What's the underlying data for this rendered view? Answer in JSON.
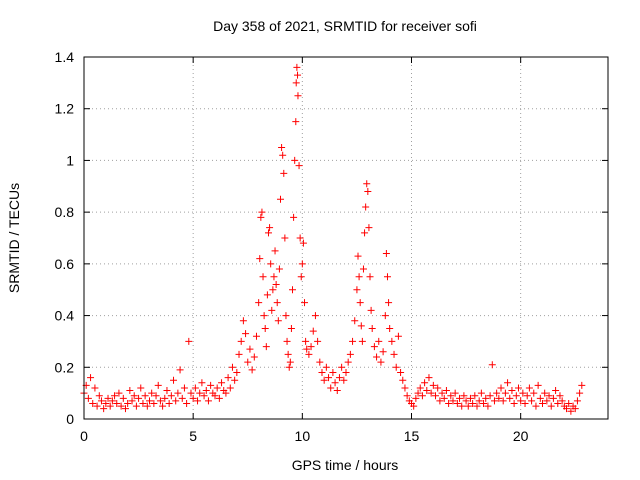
{
  "chart_data": {
    "type": "scatter",
    "title": "Day 358 of 2021, SRMTID for receiver sofi",
    "xlabel": "GPS time / hours",
    "ylabel": "SRMTID / TECUs",
    "xlim": [
      0,
      24
    ],
    "ylim": [
      0,
      1.4
    ],
    "x_ticks": [
      0,
      5,
      10,
      15,
      20
    ],
    "x_tick_labels": [
      "0",
      "5",
      "10",
      "15",
      "20"
    ],
    "y_ticks": [
      0,
      0.2,
      0.4,
      0.6,
      0.8,
      1.0,
      1.2,
      1.4
    ],
    "y_tick_labels": [
      "0",
      "0.2",
      "0.4",
      "0.6",
      "0.8",
      "1",
      "1.2",
      "1.4"
    ],
    "grid": true,
    "marker": "+",
    "color": "#ff0000",
    "series": [
      {
        "name": "SRMTID",
        "points": [
          [
            0.0,
            0.1
          ],
          [
            0.1,
            0.13
          ],
          [
            0.2,
            0.08
          ],
          [
            0.3,
            0.16
          ],
          [
            0.4,
            0.06
          ],
          [
            0.5,
            0.12
          ],
          [
            0.6,
            0.05
          ],
          [
            0.7,
            0.09
          ],
          [
            0.8,
            0.07
          ],
          [
            0.9,
            0.04
          ],
          [
            1.0,
            0.06
          ],
          [
            1.1,
            0.08
          ],
          [
            1.2,
            0.05
          ],
          [
            1.3,
            0.07
          ],
          [
            1.4,
            0.09
          ],
          [
            1.5,
            0.06
          ],
          [
            1.6,
            0.1
          ],
          [
            1.7,
            0.05
          ],
          [
            1.8,
            0.08
          ],
          [
            1.9,
            0.04
          ],
          [
            2.0,
            0.06
          ],
          [
            2.1,
            0.11
          ],
          [
            2.2,
            0.07
          ],
          [
            2.3,
            0.09
          ],
          [
            2.4,
            0.05
          ],
          [
            2.5,
            0.08
          ],
          [
            2.6,
            0.12
          ],
          [
            2.7,
            0.06
          ],
          [
            2.8,
            0.09
          ],
          [
            2.9,
            0.05
          ],
          [
            3.0,
            0.07
          ],
          [
            3.1,
            0.1
          ],
          [
            3.2,
            0.06
          ],
          [
            3.3,
            0.09
          ],
          [
            3.4,
            0.13
          ],
          [
            3.5,
            0.07
          ],
          [
            3.6,
            0.05
          ],
          [
            3.7,
            0.08
          ],
          [
            3.8,
            0.11
          ],
          [
            3.9,
            0.06
          ],
          [
            4.0,
            0.09
          ],
          [
            4.1,
            0.15
          ],
          [
            4.2,
            0.07
          ],
          [
            4.3,
            0.1
          ],
          [
            4.4,
            0.19
          ],
          [
            4.5,
            0.08
          ],
          [
            4.6,
            0.12
          ],
          [
            4.7,
            0.06
          ],
          [
            4.8,
            0.3
          ],
          [
            4.9,
            0.1
          ],
          [
            5.0,
            0.08
          ],
          [
            5.1,
            0.12
          ],
          [
            5.2,
            0.07
          ],
          [
            5.3,
            0.1
          ],
          [
            5.4,
            0.14
          ],
          [
            5.5,
            0.09
          ],
          [
            5.6,
            0.11
          ],
          [
            5.7,
            0.07
          ],
          [
            5.8,
            0.13
          ],
          [
            5.9,
            0.1
          ],
          [
            6.0,
            0.09
          ],
          [
            6.1,
            0.12
          ],
          [
            6.2,
            0.08
          ],
          [
            6.3,
            0.14
          ],
          [
            6.4,
            0.11
          ],
          [
            6.5,
            0.1
          ],
          [
            6.6,
            0.16
          ],
          [
            6.7,
            0.12
          ],
          [
            6.8,
            0.2
          ],
          [
            6.9,
            0.15
          ],
          [
            7.0,
            0.18
          ],
          [
            7.1,
            0.25
          ],
          [
            7.2,
            0.3
          ],
          [
            7.3,
            0.38
          ],
          [
            7.4,
            0.33
          ],
          [
            7.5,
            0.22
          ],
          [
            7.6,
            0.27
          ],
          [
            7.7,
            0.19
          ],
          [
            7.8,
            0.24
          ],
          [
            7.9,
            0.32
          ],
          [
            8.0,
            0.45
          ],
          [
            8.05,
            0.62
          ],
          [
            8.1,
            0.78
          ],
          [
            8.15,
            0.8
          ],
          [
            8.2,
            0.55
          ],
          [
            8.25,
            0.4
          ],
          [
            8.3,
            0.35
          ],
          [
            8.35,
            0.28
          ],
          [
            8.4,
            0.48
          ],
          [
            8.45,
            0.72
          ],
          [
            8.5,
            0.74
          ],
          [
            8.55,
            0.6
          ],
          [
            8.6,
            0.42
          ],
          [
            8.65,
            0.5
          ],
          [
            8.7,
            0.55
          ],
          [
            8.75,
            0.65
          ],
          [
            8.8,
            0.52
          ],
          [
            8.85,
            0.45
          ],
          [
            8.9,
            0.38
          ],
          [
            8.95,
            0.58
          ],
          [
            9.0,
            0.85
          ],
          [
            9.05,
            1.05
          ],
          [
            9.1,
            1.02
          ],
          [
            9.15,
            0.95
          ],
          [
            9.2,
            0.7
          ],
          [
            9.25,
            0.4
          ],
          [
            9.3,
            0.3
          ],
          [
            9.35,
            0.25
          ],
          [
            9.4,
            0.2
          ],
          [
            9.45,
            0.22
          ],
          [
            9.5,
            0.35
          ],
          [
            9.55,
            0.5
          ],
          [
            9.6,
            0.78
          ],
          [
            9.65,
            1.0
          ],
          [
            9.7,
            1.15
          ],
          [
            9.72,
            1.3
          ],
          [
            9.75,
            1.36
          ],
          [
            9.78,
            1.33
          ],
          [
            9.8,
            1.25
          ],
          [
            9.85,
            0.98
          ],
          [
            9.9,
            0.7
          ],
          [
            9.95,
            0.55
          ],
          [
            10.0,
            0.6
          ],
          [
            10.05,
            0.68
          ],
          [
            10.1,
            0.45
          ],
          [
            10.15,
            0.3
          ],
          [
            10.2,
            0.27
          ],
          [
            10.3,
            0.25
          ],
          [
            10.4,
            0.28
          ],
          [
            10.5,
            0.34
          ],
          [
            10.6,
            0.4
          ],
          [
            10.7,
            0.3
          ],
          [
            10.8,
            0.22
          ],
          [
            10.9,
            0.18
          ],
          [
            11.0,
            0.15
          ],
          [
            11.1,
            0.2
          ],
          [
            11.2,
            0.16
          ],
          [
            11.3,
            0.12
          ],
          [
            11.4,
            0.18
          ],
          [
            11.5,
            0.14
          ],
          [
            11.6,
            0.11
          ],
          [
            11.7,
            0.16
          ],
          [
            11.8,
            0.2
          ],
          [
            11.9,
            0.15
          ],
          [
            12.0,
            0.18
          ],
          [
            12.1,
            0.22
          ],
          [
            12.2,
            0.25
          ],
          [
            12.3,
            0.3
          ],
          [
            12.4,
            0.38
          ],
          [
            12.5,
            0.5
          ],
          [
            12.55,
            0.63
          ],
          [
            12.6,
            0.55
          ],
          [
            12.65,
            0.45
          ],
          [
            12.7,
            0.36
          ],
          [
            12.75,
            0.3
          ],
          [
            12.8,
            0.58
          ],
          [
            12.85,
            0.72
          ],
          [
            12.9,
            0.82
          ],
          [
            12.95,
            0.91
          ],
          [
            13.0,
            0.88
          ],
          [
            13.05,
            0.74
          ],
          [
            13.1,
            0.55
          ],
          [
            13.15,
            0.42
          ],
          [
            13.2,
            0.35
          ],
          [
            13.3,
            0.28
          ],
          [
            13.4,
            0.24
          ],
          [
            13.5,
            0.3
          ],
          [
            13.6,
            0.22
          ],
          [
            13.7,
            0.26
          ],
          [
            13.8,
            0.4
          ],
          [
            13.85,
            0.64
          ],
          [
            13.9,
            0.55
          ],
          [
            13.95,
            0.45
          ],
          [
            14.0,
            0.35
          ],
          [
            14.1,
            0.3
          ],
          [
            14.2,
            0.25
          ],
          [
            14.3,
            0.2
          ],
          [
            14.4,
            0.32
          ],
          [
            14.5,
            0.18
          ],
          [
            14.6,
            0.15
          ],
          [
            14.7,
            0.12
          ],
          [
            14.8,
            0.09
          ],
          [
            14.9,
            0.07
          ],
          [
            15.0,
            0.06
          ],
          [
            15.1,
            0.05
          ],
          [
            15.2,
            0.08
          ],
          [
            15.3,
            0.1
          ],
          [
            15.4,
            0.12
          ],
          [
            15.5,
            0.09
          ],
          [
            15.6,
            0.14
          ],
          [
            15.7,
            0.11
          ],
          [
            15.8,
            0.16
          ],
          [
            15.9,
            0.1
          ],
          [
            16.0,
            0.13
          ],
          [
            16.1,
            0.09
          ],
          [
            16.2,
            0.12
          ],
          [
            16.3,
            0.07
          ],
          [
            16.4,
            0.1
          ],
          [
            16.5,
            0.08
          ],
          [
            16.6,
            0.11
          ],
          [
            16.7,
            0.06
          ],
          [
            16.8,
            0.09
          ],
          [
            16.9,
            0.07
          ],
          [
            17.0,
            0.1
          ],
          [
            17.1,
            0.06
          ],
          [
            17.2,
            0.08
          ],
          [
            17.3,
            0.05
          ],
          [
            17.4,
            0.09
          ],
          [
            17.5,
            0.07
          ],
          [
            17.6,
            0.05
          ],
          [
            17.7,
            0.08
          ],
          [
            17.8,
            0.06
          ],
          [
            17.9,
            0.09
          ],
          [
            18.0,
            0.05
          ],
          [
            18.1,
            0.07
          ],
          [
            18.2,
            0.1
          ],
          [
            18.3,
            0.06
          ],
          [
            18.4,
            0.08
          ],
          [
            18.5,
            0.05
          ],
          [
            18.6,
            0.09
          ],
          [
            18.7,
            0.21
          ],
          [
            18.8,
            0.07
          ],
          [
            18.9,
            0.1
          ],
          [
            19.0,
            0.08
          ],
          [
            19.1,
            0.12
          ],
          [
            19.2,
            0.07
          ],
          [
            19.3,
            0.1
          ],
          [
            19.4,
            0.14
          ],
          [
            19.5,
            0.08
          ],
          [
            19.6,
            0.11
          ],
          [
            19.7,
            0.06
          ],
          [
            19.8,
            0.09
          ],
          [
            19.9,
            0.12
          ],
          [
            20.0,
            0.07
          ],
          [
            20.1,
            0.1
          ],
          [
            20.2,
            0.06
          ],
          [
            20.3,
            0.09
          ],
          [
            20.4,
            0.12
          ],
          [
            20.5,
            0.07
          ],
          [
            20.6,
            0.1
          ],
          [
            20.7,
            0.05
          ],
          [
            20.8,
            0.13
          ],
          [
            20.9,
            0.08
          ],
          [
            21.0,
            0.06
          ],
          [
            21.1,
            0.1
          ],
          [
            21.2,
            0.07
          ],
          [
            21.3,
            0.09
          ],
          [
            21.4,
            0.05
          ],
          [
            21.5,
            0.08
          ],
          [
            21.6,
            0.11
          ],
          [
            21.7,
            0.06
          ],
          [
            21.8,
            0.09
          ],
          [
            21.9,
            0.07
          ],
          [
            22.0,
            0.05
          ],
          [
            22.1,
            0.04
          ],
          [
            22.2,
            0.06
          ],
          [
            22.3,
            0.03
          ],
          [
            22.4,
            0.05
          ],
          [
            22.5,
            0.04
          ],
          [
            22.6,
            0.07
          ],
          [
            22.7,
            0.1
          ],
          [
            22.8,
            0.13
          ]
        ]
      }
    ]
  }
}
